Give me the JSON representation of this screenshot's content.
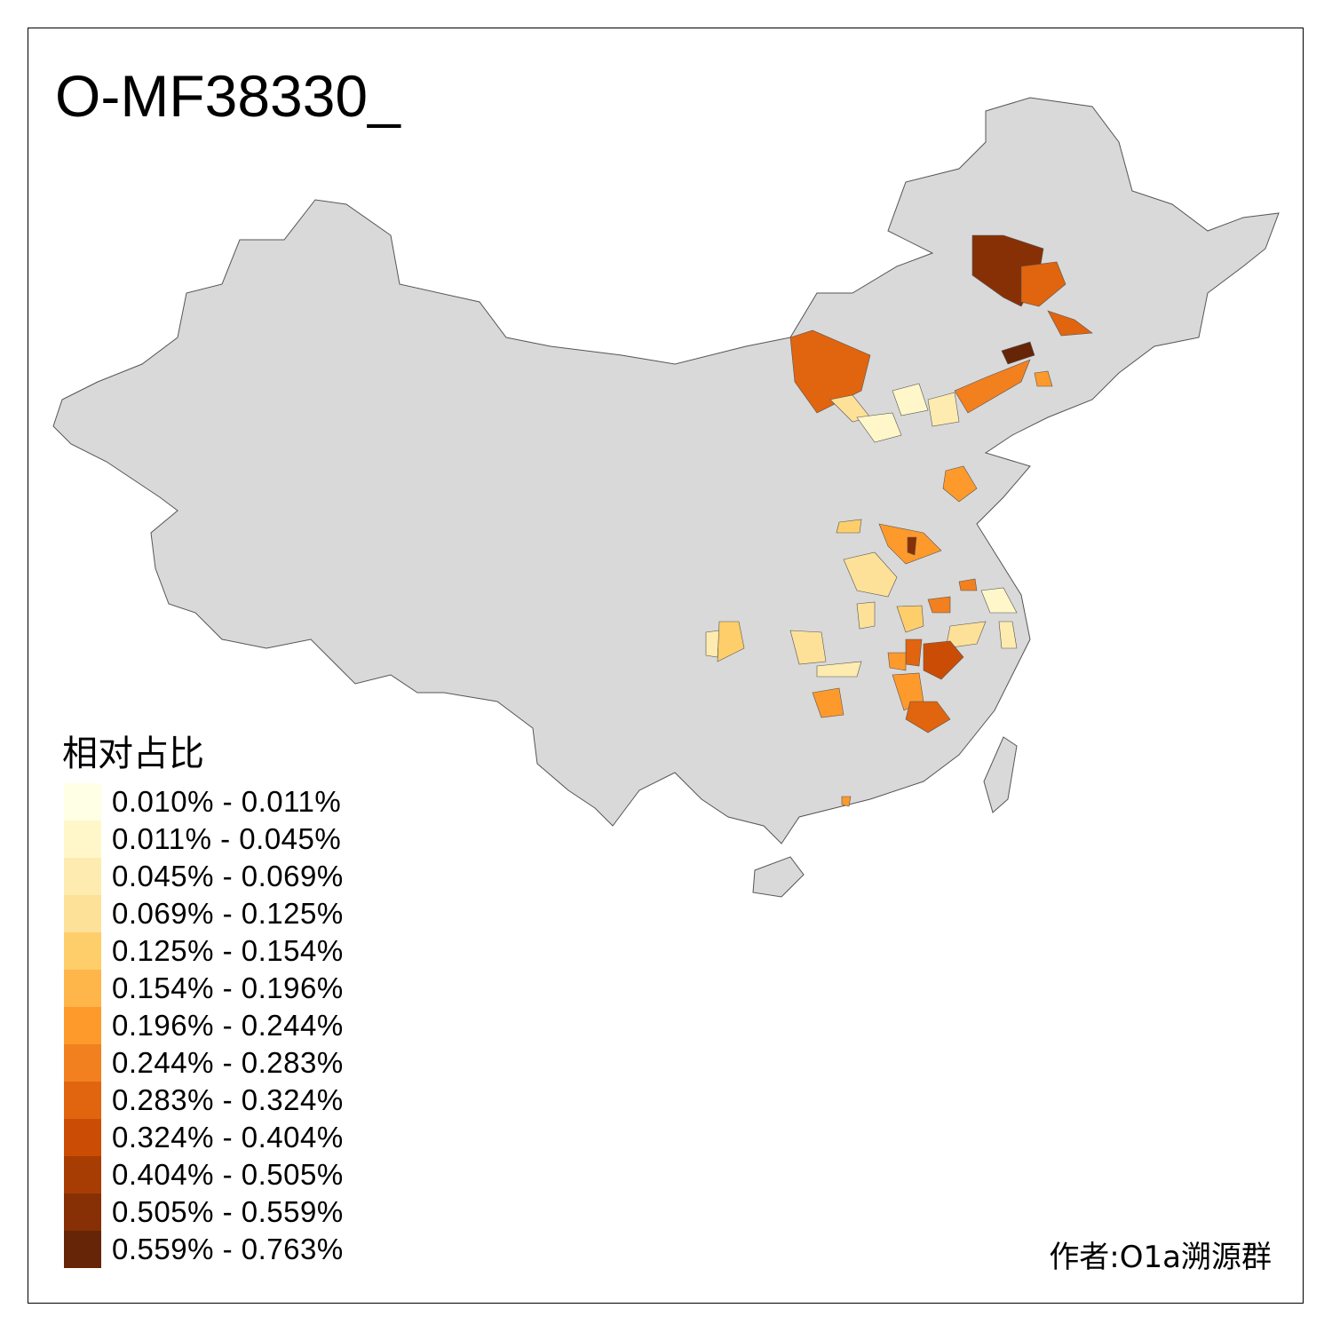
{
  "title": "O-MF38330_",
  "legend": {
    "title": "相对占比",
    "items": [
      {
        "label": "0.010% - 0.011%",
        "color": "#FFFFE5"
      },
      {
        "label": "0.011% - 0.045%",
        "color": "#FFF7C9"
      },
      {
        "label": "0.045% - 0.069%",
        "color": "#FEEBAF"
      },
      {
        "label": "0.069% - 0.125%",
        "color": "#FEE199"
      },
      {
        "label": "0.125% - 0.154%",
        "color": "#FECE6A"
      },
      {
        "label": "0.154% - 0.196%",
        "color": "#FEB54A"
      },
      {
        "label": "0.196% - 0.244%",
        "color": "#FE9A2B"
      },
      {
        "label": "0.244% - 0.283%",
        "color": "#F2801F"
      },
      {
        "label": "0.283% - 0.324%",
        "color": "#E1640F"
      },
      {
        "label": "0.324% - 0.404%",
        "color": "#CB4D05"
      },
      {
        "label": "0.404% - 0.505%",
        "color": "#A83D03"
      },
      {
        "label": "0.505% - 0.559%",
        "color": "#873005"
      },
      {
        "label": "0.559% - 0.763%",
        "color": "#662506"
      }
    ]
  },
  "author": "作者:O1a溯源群",
  "map_colors": {
    "base": "#D9D9D9",
    "border": "#555555"
  }
}
